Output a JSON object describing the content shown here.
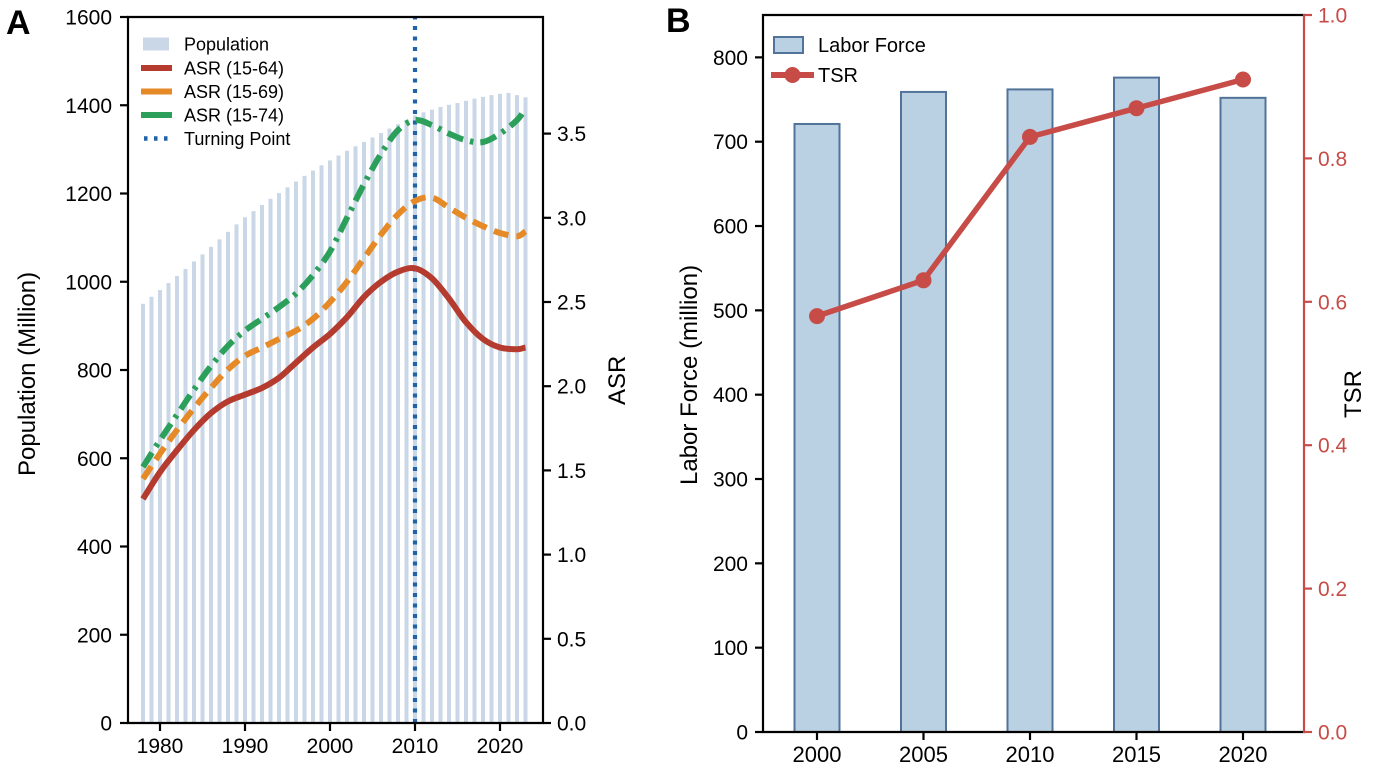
{
  "chart_data": [
    {
      "panel_label": "A",
      "type": "bar+line",
      "ylabel_left": "Population (Million)",
      "ylabel_right": "ASR",
      "xticks": [
        1980,
        1990,
        2000,
        2010,
        2020
      ],
      "ylim_left": [
        0,
        1600
      ],
      "ylim_right": [
        0.0,
        4.2
      ],
      "yticks_left": [
        0,
        200,
        400,
        600,
        800,
        1000,
        1200,
        1400,
        1600
      ],
      "yticks_right": [
        "0.0",
        "0.5",
        "1.0",
        "1.5",
        "2.0",
        "2.5",
        "3.0",
        "3.5"
      ],
      "legend_position": "upper-left",
      "bar_series": {
        "name": "Population",
        "color": "#c9d7e6",
        "years": [
          1978,
          1979,
          1980,
          1981,
          1982,
          1983,
          1984,
          1985,
          1986,
          1987,
          1988,
          1989,
          1990,
          1991,
          1992,
          1993,
          1994,
          1995,
          1996,
          1997,
          1998,
          1999,
          2000,
          2001,
          2002,
          2003,
          2004,
          2005,
          2006,
          2007,
          2008,
          2009,
          2010,
          2011,
          2012,
          2013,
          2014,
          2015,
          2016,
          2017,
          2018,
          2019,
          2020,
          2021,
          2022,
          2023
        ],
        "values": [
          950,
          966,
          981,
          997,
          1013,
          1029,
          1046,
          1062,
          1079,
          1096,
          1113,
          1130,
          1146,
          1160,
          1174,
          1188,
          1201,
          1214,
          1227,
          1240,
          1252,
          1264,
          1275,
          1286,
          1297,
          1307,
          1317,
          1327,
          1337,
          1347,
          1357,
          1367,
          1377,
          1384,
          1390,
          1396,
          1401,
          1405,
          1410,
          1415,
          1419,
          1423,
          1426,
          1428,
          1423,
          1418
        ]
      },
      "line_series": [
        {
          "name": "ASR (15-64)",
          "color": "#b43b2d",
          "style": "solid",
          "years": [
            1978,
            1980,
            1982,
            1984,
            1986,
            1988,
            1990,
            1992,
            1994,
            1996,
            1998,
            2000,
            2002,
            2004,
            2006,
            2008,
            2010,
            2012,
            2014,
            2016,
            2018,
            2020,
            2022,
            2023
          ],
          "values": [
            1.33,
            1.49,
            1.62,
            1.74,
            1.84,
            1.91,
            1.95,
            1.99,
            2.05,
            2.14,
            2.23,
            2.31,
            2.41,
            2.53,
            2.62,
            2.68,
            2.7,
            2.64,
            2.52,
            2.38,
            2.28,
            2.23,
            2.22,
            2.23
          ]
        },
        {
          "name": "ASR (15-69)",
          "color": "#e58a27",
          "style": "dashed",
          "years": [
            1978,
            1980,
            1982,
            1984,
            1986,
            1988,
            1990,
            1992,
            1994,
            1996,
            1998,
            2000,
            2002,
            2004,
            2006,
            2008,
            2010,
            2012,
            2014,
            2016,
            2018,
            2020,
            2022,
            2023
          ],
          "values": [
            1.45,
            1.6,
            1.74,
            1.87,
            1.99,
            2.1,
            2.18,
            2.23,
            2.28,
            2.33,
            2.4,
            2.5,
            2.62,
            2.76,
            2.9,
            3.02,
            3.1,
            3.12,
            3.06,
            3.0,
            2.95,
            2.91,
            2.89,
            2.92
          ]
        },
        {
          "name": "ASR (15-74)",
          "color": "#2ca05a",
          "style": "dashdot",
          "years": [
            1978,
            1980,
            1982,
            1984,
            1986,
            1988,
            1990,
            1992,
            1994,
            1996,
            1998,
            2000,
            2002,
            2004,
            2006,
            2008,
            2010,
            2012,
            2014,
            2016,
            2018,
            2020,
            2022,
            2023
          ],
          "values": [
            1.52,
            1.68,
            1.83,
            1.98,
            2.12,
            2.24,
            2.33,
            2.4,
            2.47,
            2.55,
            2.66,
            2.8,
            3.0,
            3.2,
            3.38,
            3.52,
            3.58,
            3.55,
            3.5,
            3.46,
            3.45,
            3.5,
            3.58,
            3.65
          ]
        }
      ],
      "turning_point": {
        "name": "Turning Point",
        "year": 2010,
        "color": "#1f62a8",
        "style": "dotted"
      }
    },
    {
      "panel_label": "B",
      "type": "bar+line",
      "ylabel_left": "Labor Force (million)",
      "ylabel_right": "TSR",
      "categories": [
        "2000",
        "2005",
        "2010",
        "2015",
        "2020"
      ],
      "ylim_left": [
        0,
        850
      ],
      "ylim_right": [
        0.0,
        1.0
      ],
      "yticks_left": [
        0,
        100,
        200,
        300,
        400,
        500,
        600,
        700,
        800
      ],
      "yticks_right": [
        "0.0",
        "0.2",
        "0.4",
        "0.6",
        "0.8",
        "1.0"
      ],
      "legend_position": "upper-left",
      "bar_series": {
        "name": "Labor Force",
        "fill": "#bad0e3",
        "border": "#527399",
        "values": [
          721,
          759,
          762,
          776,
          752
        ]
      },
      "line_series": {
        "name": "TSR",
        "color": "#c74b47",
        "values": [
          0.58,
          0.63,
          0.83,
          0.87,
          0.91
        ]
      },
      "axis_colors": {
        "left": "#000000",
        "right": "#c74b47"
      }
    }
  ]
}
